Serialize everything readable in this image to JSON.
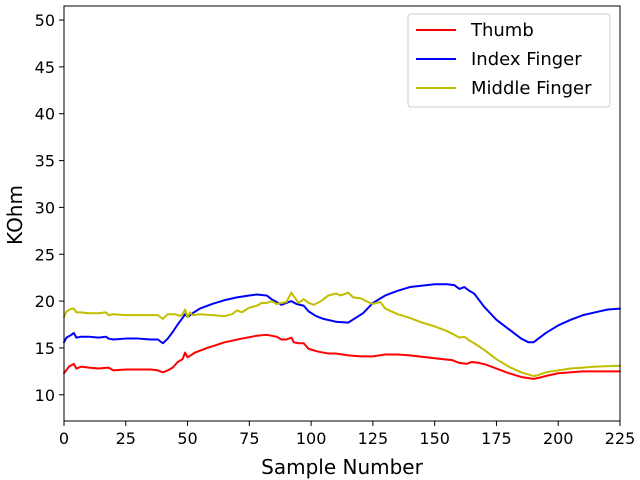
{
  "chart_data": {
    "type": "line",
    "xlabel": "Sample Number",
    "ylabel": "KOhm",
    "xlim": [
      0,
      225
    ],
    "ylim": [
      7.2,
      51.5
    ],
    "x_ticks": [
      0,
      25,
      50,
      75,
      100,
      125,
      150,
      175,
      200,
      225
    ],
    "y_ticks": [
      10,
      15,
      20,
      25,
      30,
      35,
      40,
      45,
      50
    ],
    "grid": false,
    "legend_position": "top-right",
    "series": [
      {
        "name": "Thumb",
        "color": "#ff0000",
        "points": [
          [
            0,
            12.3
          ],
          [
            2,
            13
          ],
          [
            4,
            13.3
          ],
          [
            5,
            12.8
          ],
          [
            7,
            13
          ],
          [
            10,
            12.9
          ],
          [
            14,
            12.8
          ],
          [
            18,
            12.9
          ],
          [
            20,
            12.6
          ],
          [
            25,
            12.7
          ],
          [
            30,
            12.7
          ],
          [
            35,
            12.7
          ],
          [
            38,
            12.6
          ],
          [
            40,
            12.4
          ],
          [
            42,
            12.6
          ],
          [
            44,
            12.9
          ],
          [
            46,
            13.5
          ],
          [
            48,
            13.8
          ],
          [
            49,
            14.5
          ],
          [
            50,
            14.0
          ],
          [
            53,
            14.5
          ],
          [
            58,
            15.0
          ],
          [
            65,
            15.6
          ],
          [
            72,
            16.0
          ],
          [
            78,
            16.3
          ],
          [
            82,
            16.4
          ],
          [
            86,
            16.2
          ],
          [
            88,
            15.9
          ],
          [
            90,
            15.9
          ],
          [
            92,
            16.1
          ],
          [
            93,
            15.6
          ],
          [
            95,
            15.5
          ],
          [
            97,
            15.5
          ],
          [
            99,
            14.9
          ],
          [
            103,
            14.6
          ],
          [
            107,
            14.4
          ],
          [
            110,
            14.4
          ],
          [
            115,
            14.2
          ],
          [
            120,
            14.1
          ],
          [
            125,
            14.1
          ],
          [
            130,
            14.3
          ],
          [
            135,
            14.3
          ],
          [
            140,
            14.2
          ],
          [
            150,
            13.9
          ],
          [
            157,
            13.7
          ],
          [
            160,
            13.4
          ],
          [
            163,
            13.3
          ],
          [
            165,
            13.5
          ],
          [
            168,
            13.4
          ],
          [
            171,
            13.2
          ],
          [
            175,
            12.8
          ],
          [
            180,
            12.3
          ],
          [
            185,
            11.9
          ],
          [
            190,
            11.7
          ],
          [
            192,
            11.8
          ],
          [
            195,
            12.0
          ],
          [
            200,
            12.3
          ],
          [
            210,
            12.5
          ],
          [
            225,
            12.5
          ]
        ]
      },
      {
        "name": "Index Finger",
        "color": "#0000ff",
        "points": [
          [
            0,
            15.6
          ],
          [
            1,
            16.1
          ],
          [
            3,
            16.4
          ],
          [
            4,
            16.6
          ],
          [
            5,
            16.1
          ],
          [
            7,
            16.2
          ],
          [
            10,
            16.2
          ],
          [
            14,
            16.1
          ],
          [
            17,
            16.2
          ],
          [
            18,
            16.0
          ],
          [
            20,
            15.9
          ],
          [
            25,
            16.0
          ],
          [
            30,
            16.0
          ],
          [
            35,
            15.9
          ],
          [
            38,
            15.9
          ],
          [
            40,
            15.5
          ],
          [
            42,
            16.0
          ],
          [
            44,
            16.7
          ],
          [
            46,
            17.5
          ],
          [
            48,
            18.2
          ],
          [
            49,
            18.6
          ],
          [
            50,
            18.3
          ],
          [
            52,
            18.7
          ],
          [
            55,
            19.2
          ],
          [
            60,
            19.7
          ],
          [
            65,
            20.1
          ],
          [
            70,
            20.4
          ],
          [
            75,
            20.6
          ],
          [
            78,
            20.7
          ],
          [
            82,
            20.6
          ],
          [
            84,
            20.2
          ],
          [
            86,
            19.9
          ],
          [
            88,
            19.6
          ],
          [
            90,
            19.8
          ],
          [
            92,
            20.0
          ],
          [
            94,
            19.7
          ],
          [
            97,
            19.5
          ],
          [
            99,
            18.9
          ],
          [
            102,
            18.4
          ],
          [
            105,
            18.1
          ],
          [
            110,
            17.8
          ],
          [
            115,
            17.7
          ],
          [
            118,
            18.2
          ],
          [
            121,
            18.7
          ],
          [
            125,
            19.8
          ],
          [
            130,
            20.6
          ],
          [
            135,
            21.1
          ],
          [
            140,
            21.5
          ],
          [
            150,
            21.8
          ],
          [
            155,
            21.8
          ],
          [
            158,
            21.7
          ],
          [
            160,
            21.3
          ],
          [
            162,
            21.5
          ],
          [
            164,
            21.1
          ],
          [
            166,
            20.8
          ],
          [
            170,
            19.4
          ],
          [
            175,
            18.0
          ],
          [
            180,
            17.0
          ],
          [
            185,
            16.0
          ],
          [
            188,
            15.6
          ],
          [
            190,
            15.6
          ],
          [
            192,
            16.0
          ],
          [
            195,
            16.6
          ],
          [
            200,
            17.4
          ],
          [
            205,
            18.0
          ],
          [
            210,
            18.5
          ],
          [
            215,
            18.8
          ],
          [
            220,
            19.1
          ],
          [
            225,
            19.2
          ]
        ]
      },
      {
        "name": "Middle Finger",
        "color": "#bfbf00",
        "points": [
          [
            0,
            18.3
          ],
          [
            1,
            18.9
          ],
          [
            3,
            19.2
          ],
          [
            4,
            19.2
          ],
          [
            5,
            18.8
          ],
          [
            7,
            18.8
          ],
          [
            10,
            18.7
          ],
          [
            14,
            18.7
          ],
          [
            17,
            18.8
          ],
          [
            18,
            18.5
          ],
          [
            20,
            18.6
          ],
          [
            25,
            18.5
          ],
          [
            30,
            18.5
          ],
          [
            35,
            18.5
          ],
          [
            38,
            18.5
          ],
          [
            40,
            18.1
          ],
          [
            42,
            18.6
          ],
          [
            45,
            18.6
          ],
          [
            47,
            18.4
          ],
          [
            48,
            18.6
          ],
          [
            49,
            19.1
          ],
          [
            50,
            18.3
          ],
          [
            51,
            18.8
          ],
          [
            52,
            18.5
          ],
          [
            55,
            18.6
          ],
          [
            60,
            18.5
          ],
          [
            65,
            18.4
          ],
          [
            68,
            18.6
          ],
          [
            70,
            19.0
          ],
          [
            72,
            18.8
          ],
          [
            75,
            19.3
          ],
          [
            78,
            19.5
          ],
          [
            80,
            19.8
          ],
          [
            82,
            19.8
          ],
          [
            84,
            20.0
          ],
          [
            86,
            19.7
          ],
          [
            88,
            19.8
          ],
          [
            90,
            19.9
          ],
          [
            92,
            20.9
          ],
          [
            93,
            20.5
          ],
          [
            95,
            19.8
          ],
          [
            97,
            20.2
          ],
          [
            99,
            19.8
          ],
          [
            101,
            19.6
          ],
          [
            104,
            20.0
          ],
          [
            107,
            20.6
          ],
          [
            110,
            20.8
          ],
          [
            112,
            20.6
          ],
          [
            115,
            20.9
          ],
          [
            117,
            20.4
          ],
          [
            120,
            20.3
          ],
          [
            123,
            19.9
          ],
          [
            125,
            19.7
          ],
          [
            128,
            19.9
          ],
          [
            130,
            19.2
          ],
          [
            135,
            18.6
          ],
          [
            140,
            18.2
          ],
          [
            145,
            17.7
          ],
          [
            150,
            17.3
          ],
          [
            155,
            16.8
          ],
          [
            158,
            16.4
          ],
          [
            160,
            16.1
          ],
          [
            162,
            16.2
          ],
          [
            164,
            15.8
          ],
          [
            166,
            15.5
          ],
          [
            170,
            14.8
          ],
          [
            175,
            13.8
          ],
          [
            180,
            13.0
          ],
          [
            185,
            12.4
          ],
          [
            190,
            12.0
          ],
          [
            192,
            12.1
          ],
          [
            195,
            12.4
          ],
          [
            200,
            12.6
          ],
          [
            205,
            12.8
          ],
          [
            210,
            12.9
          ],
          [
            215,
            13.0
          ],
          [
            225,
            13.1
          ]
        ]
      }
    ]
  }
}
